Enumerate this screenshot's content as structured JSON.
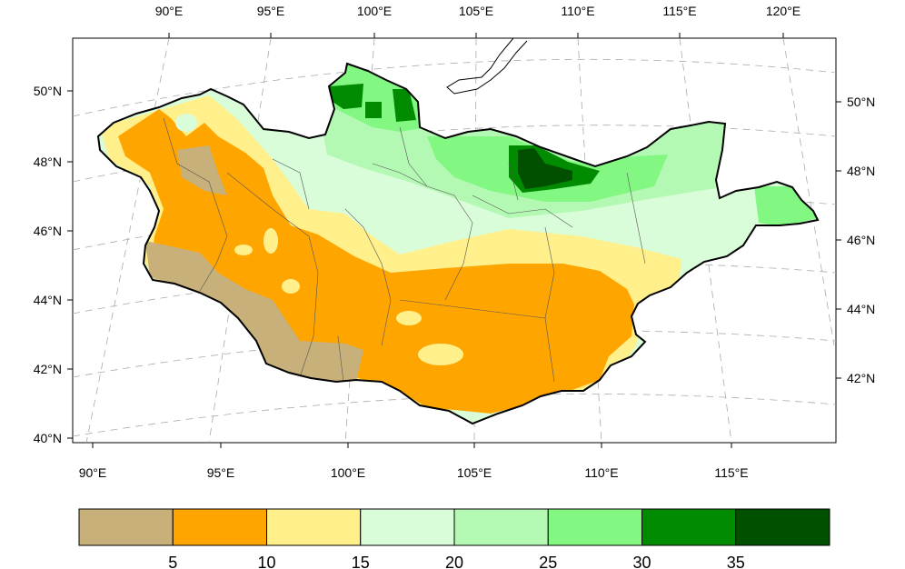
{
  "map": {
    "top_lon_labels": [
      "90°E",
      "95°E",
      "100°E",
      "105°E",
      "110°E",
      "115°E",
      "120°E"
    ],
    "bottom_lon_labels": [
      "90°E",
      "95°E",
      "100°E",
      "105°E",
      "110°E",
      "115°E"
    ],
    "left_lat_labels": [
      "50°N",
      "48°N",
      "46°N",
      "44°N",
      "42°N",
      "40°N"
    ],
    "right_lat_labels": [
      "50°N",
      "48°N",
      "46°N",
      "44°N",
      "42°N"
    ],
    "grid": "dashed lat/lon lines",
    "projection": "conic"
  },
  "colorbar": {
    "colors": [
      "#c8b07a",
      "#ffa500",
      "#fff08c",
      "#d9fcd9",
      "#b3f9b3",
      "#82f782",
      "#008b00",
      "#005000"
    ],
    "labels": [
      "5",
      "10",
      "15",
      "20",
      "25",
      "30",
      "35"
    ]
  }
}
